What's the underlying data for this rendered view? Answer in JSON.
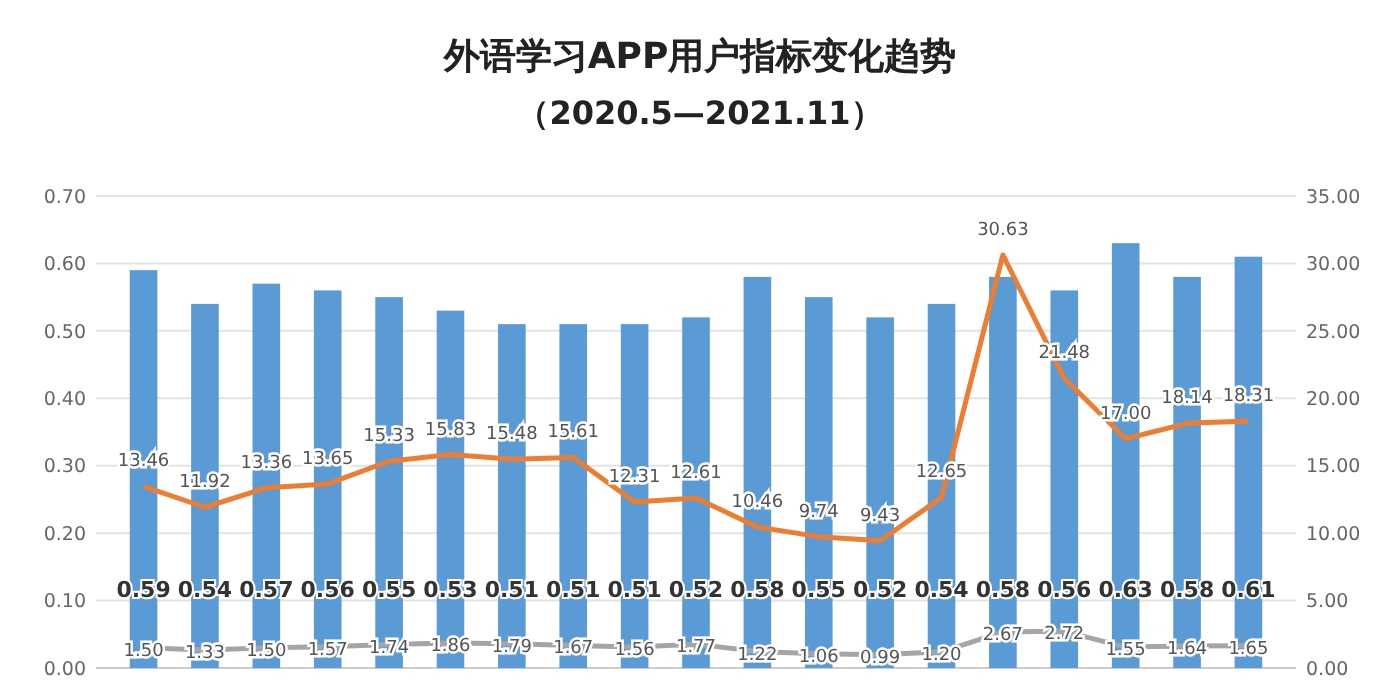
{
  "chart_data": {
    "type": "bar",
    "title": "外语学习APP用户指标变化趋势",
    "subtitle": "（2020.5—2021.11）",
    "categories": [
      null,
      null,
      null,
      null,
      null,
      null,
      null,
      null,
      null,
      null,
      null,
      null,
      null,
      null,
      null,
      null,
      null,
      null,
      null
    ],
    "series": [
      {
        "color": "#5b9bd5",
        "values": [
          0.59,
          0.54,
          0.57,
          0.56,
          0.55,
          0.53,
          0.51,
          0.51,
          0.51,
          0.52,
          0.58,
          0.55,
          0.52,
          0.54,
          0.58,
          0.56,
          0.63,
          0.58,
          0.61
        ],
        "value_labels": [
          "0.59",
          "0.54",
          "0.57",
          "0.56",
          "0.55",
          "0.53",
          "0.51",
          "0.51",
          "0.51",
          "0.52",
          "0.58",
          "0.55",
          "0.52",
          "0.54",
          "0.58",
          "0.56",
          "0.63",
          "0.58",
          "0.61"
        ]
      },
      {
        "type": "line",
        "axis": "y2",
        "color": "#ed7d31",
        "values": [
          13.46,
          11.92,
          13.36,
          13.65,
          15.33,
          15.83,
          15.48,
          15.61,
          12.31,
          12.61,
          10.46,
          9.74,
          9.43,
          12.65,
          30.63,
          21.48,
          17.0,
          18.14,
          18.31
        ],
        "value_labels": [
          "13.46",
          "11.92",
          "13.36",
          "13.65",
          "15.33",
          "15.83",
          "15.48",
          "15.61",
          "12.31",
          "12.61",
          "10.46",
          "9.74",
          "9.43",
          "12.65",
          "30.63",
          "21.48",
          "17.00",
          "18.14",
          "18.31"
        ]
      },
      {
        "type": "line",
        "axis": "y2",
        "color": "#a5a5a5",
        "values": [
          1.5,
          1.33,
          1.5,
          1.57,
          1.74,
          1.86,
          1.79,
          1.67,
          1.56,
          1.77,
          1.22,
          1.06,
          0.99,
          1.2,
          2.67,
          2.72,
          1.55,
          1.64,
          1.65
        ],
        "value_labels": [
          "1.50",
          "1.33",
          "1.50",
          "1.57",
          "1.74",
          "1.86",
          "1.79",
          "1.67",
          "1.56",
          "1.77",
          "1.22",
          "1.06",
          "0.99",
          "1.20",
          "2.67",
          "2.72",
          "1.55",
          "1.64",
          "1.65"
        ]
      }
    ],
    "ylim": [
      0,
      0.7
    ],
    "yticks": [
      {
        "value": 0,
        "label": "0.00"
      },
      {
        "value": 0.1,
        "label": "0.10"
      },
      {
        "value": 0.2,
        "label": "0.20"
      },
      {
        "value": 0.3,
        "label": "0.30"
      },
      {
        "value": 0.4,
        "label": "0.40"
      },
      {
        "value": 0.5,
        "label": "0.50"
      },
      {
        "value": 0.6,
        "label": "0.60"
      },
      {
        "value": 0.7,
        "label": "0.70"
      }
    ],
    "y2lim": [
      0,
      35
    ],
    "y2ticks": [
      {
        "value": 0,
        "label": "0.00"
      },
      {
        "value": 5,
        "label": "5.00"
      },
      {
        "value": 10,
        "label": "10.00"
      },
      {
        "value": 15,
        "label": "15.00"
      },
      {
        "value": 20,
        "label": "20.00"
      },
      {
        "value": 25,
        "label": "25.00"
      },
      {
        "value": 30,
        "label": "30.00"
      },
      {
        "value": 35,
        "label": "35.00"
      }
    ],
    "grid": "y",
    "marker": "none"
  }
}
